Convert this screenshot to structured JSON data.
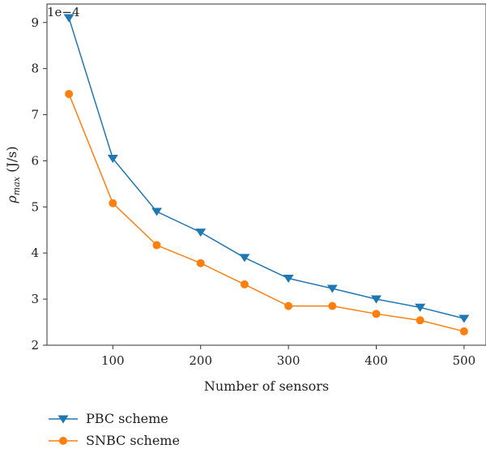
{
  "chart_data": {
    "type": "line",
    "x": [
      50,
      100,
      150,
      200,
      250,
      300,
      350,
      400,
      450,
      500
    ],
    "series": [
      {
        "name": "PBC scheme",
        "values": [
          9.1,
          6.05,
          4.9,
          4.45,
          3.9,
          3.45,
          3.23,
          3.0,
          2.82,
          2.58
        ],
        "color": "#1f77b4",
        "marker": "triangle-down"
      },
      {
        "name": "SNBC scheme",
        "values": [
          7.45,
          5.08,
          4.17,
          3.78,
          3.32,
          2.85,
          2.85,
          2.68,
          2.54,
          2.3
        ],
        "color": "#ff7f0e",
        "marker": "circle"
      }
    ],
    "xlabel": "Number of sensors",
    "ylabel": "ρmax (J/s)",
    "ylabel_main": "ρ",
    "ylabel_sub": "max",
    "ylabel_unit": " (J/s)",
    "offset_text": "1e−4",
    "xticks": [
      100,
      200,
      300,
      400,
      500
    ],
    "yticks": [
      2,
      3,
      4,
      5,
      6,
      7,
      8,
      9
    ],
    "xlim": [
      25,
      525
    ],
    "ylim": [
      2,
      9.4
    ],
    "legend_position": "below"
  }
}
